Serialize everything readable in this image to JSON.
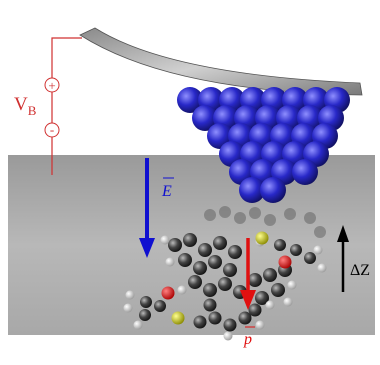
{
  "labels": {
    "bias": "V",
    "bias_subscript": "B",
    "plus": "+",
    "minus": "-",
    "field": "E",
    "dipole": "p",
    "displacement": "ΔZ"
  }
}
